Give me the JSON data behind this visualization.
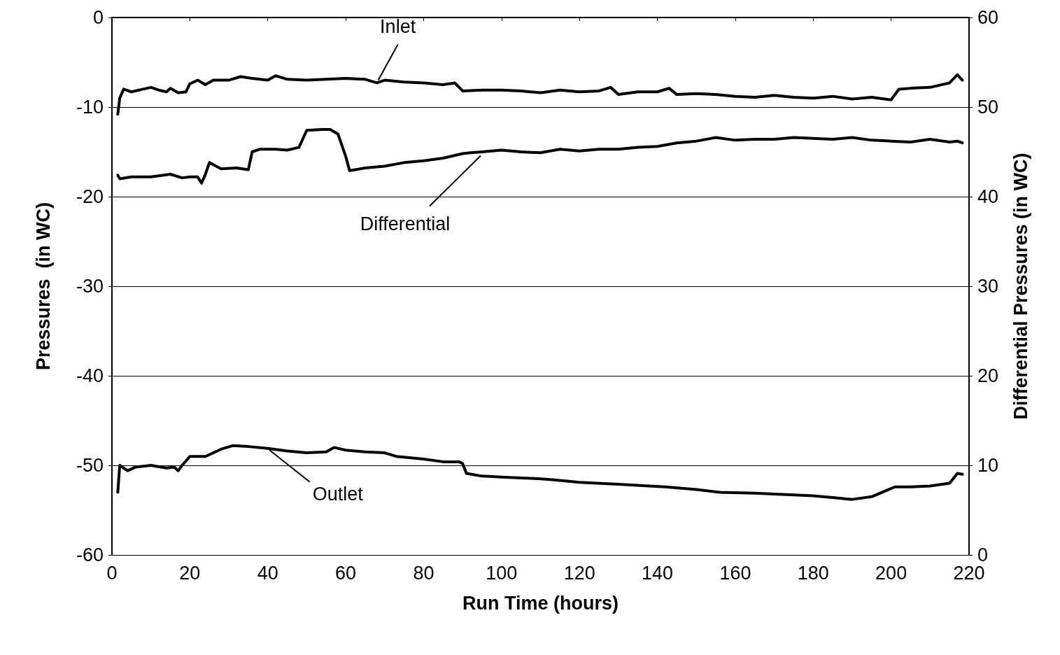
{
  "chart_data": {
    "type": "line",
    "xlabel": "Run Time (hours)",
    "ylabel": "Pressures  (in WC)",
    "y2label": "Differential Pressures (in WC)",
    "xlim": [
      0,
      220
    ],
    "xticks": [
      0,
      20,
      40,
      60,
      80,
      100,
      120,
      140,
      160,
      180,
      200,
      220
    ],
    "ylim": [
      -60,
      0
    ],
    "yticks": [
      -60,
      -50,
      -40,
      -30,
      -20,
      -10,
      0
    ],
    "y2lim": [
      0,
      60
    ],
    "y2ticks": [
      0,
      10,
      20,
      30,
      40,
      50,
      60
    ],
    "grid": "y",
    "marker": "none",
    "line_style": "solid",
    "series": [
      {
        "color": "#000000",
        "x": [
          1.5,
          2,
          3,
          5,
          8,
          10,
          12,
          14,
          15,
          17,
          19,
          20,
          22,
          24,
          26,
          30,
          33,
          36,
          40,
          42,
          45,
          50,
          55,
          60,
          65,
          68,
          70,
          75,
          80,
          85,
          88,
          90,
          95,
          100,
          105,
          110,
          115,
          120,
          125,
          128,
          130,
          135,
          140,
          143,
          145,
          150,
          155,
          160,
          165,
          170,
          175,
          180,
          185,
          190,
          195,
          200,
          202,
          205,
          210,
          215,
          217,
          218.3
        ],
        "values": [
          -10.8,
          -9,
          -8,
          -8.3,
          -8,
          -7.8,
          -8.1,
          -8.3,
          -7.9,
          -8.4,
          -8.3,
          -7.4,
          -7,
          -7.5,
          -7,
          -7,
          -6.6,
          -6.8,
          -7,
          -6.5,
          -6.9,
          -7,
          -6.9,
          -6.8,
          -6.9,
          -7.3,
          -7,
          -7.2,
          -7.3,
          -7.5,
          -7.3,
          -8.2,
          -8.1,
          -8.1,
          -8.2,
          -8.4,
          -8.1,
          -8.3,
          -8.2,
          -7.8,
          -8.6,
          -8.3,
          -8.3,
          -7.9,
          -8.6,
          -8.5,
          -8.6,
          -8.8,
          -8.9,
          -8.7,
          -8.9,
          -9,
          -8.8,
          -9.1,
          -8.9,
          -9.2,
          -8,
          -7.9,
          -7.8,
          -7.3,
          -6.4,
          -7
        ]
      },
      {
        "color": "#000000",
        "axis": "y2",
        "x": [
          1.5,
          2,
          5,
          10,
          15,
          18,
          20,
          22,
          23,
          24,
          25,
          28,
          32,
          35,
          36,
          38,
          42,
          45,
          48,
          50,
          54,
          56,
          58,
          60,
          61,
          65,
          70,
          75,
          80,
          85,
          90,
          92,
          95,
          100,
          105,
          110,
          115,
          120,
          125,
          130,
          135,
          140,
          145,
          150,
          155,
          160,
          165,
          170,
          175,
          180,
          185,
          190,
          195,
          200,
          205,
          210,
          215,
          217,
          218.3
        ],
        "values": [
          42.4,
          42,
          42.2,
          42.2,
          42.5,
          42.1,
          42.2,
          42.2,
          41.5,
          42.5,
          43.8,
          43.1,
          43.2,
          43,
          45,
          45.3,
          45.3,
          45.2,
          45.5,
          47.4,
          47.5,
          47.5,
          47,
          44.5,
          42.9,
          43.2,
          43.4,
          43.8,
          44,
          44.3,
          44.8,
          44.9,
          45,
          45.2,
          45,
          44.9,
          45.3,
          45.1,
          45.3,
          45.3,
          45.5,
          45.6,
          46,
          46.2,
          46.6,
          46.3,
          46.4,
          46.4,
          46.6,
          46.5,
          46.4,
          46.6,
          46.3,
          46.2,
          46.1,
          46.4,
          46.1,
          46.2,
          46
        ]
      },
      {
        "color": "#000000",
        "x": [
          1.5,
          2,
          4,
          6,
          10,
          14,
          16,
          17,
          18,
          20,
          24,
          28,
          31,
          35,
          40,
          45,
          50,
          55,
          57,
          60,
          65,
          70,
          73,
          80,
          85,
          89,
          90,
          91,
          95,
          100,
          105,
          110,
          113,
          120,
          130,
          142,
          150,
          156,
          165,
          175,
          180,
          185,
          190,
          195,
          201,
          205,
          210,
          215,
          217,
          218.3
        ],
        "values": [
          -53,
          -50,
          -50.6,
          -50.2,
          -50,
          -50.3,
          -50.2,
          -50.6,
          -50,
          -49,
          -49,
          -48.2,
          -47.8,
          -47.9,
          -48.1,
          -48.4,
          -48.6,
          -48.5,
          -48,
          -48.3,
          -48.5,
          -48.6,
          -49,
          -49.3,
          -49.6,
          -49.6,
          -49.8,
          -50.9,
          -51.2,
          -51.3,
          -51.4,
          -51.5,
          -51.6,
          -51.9,
          -52.1,
          -52.4,
          -52.7,
          -53,
          -53.1,
          -53.3,
          -53.4,
          -53.6,
          -53.8,
          -53.5,
          -52.4,
          -52.4,
          -52.3,
          -52,
          -50.9,
          -51
        ]
      }
    ],
    "annotations": [
      {
        "text": "Inlet",
        "x": 68,
        "y": -7.3
      },
      {
        "text": "Differential",
        "x": 95,
        "y": -15.2
      },
      {
        "text": "Outlet",
        "x": 40,
        "y": -48.1
      }
    ]
  }
}
